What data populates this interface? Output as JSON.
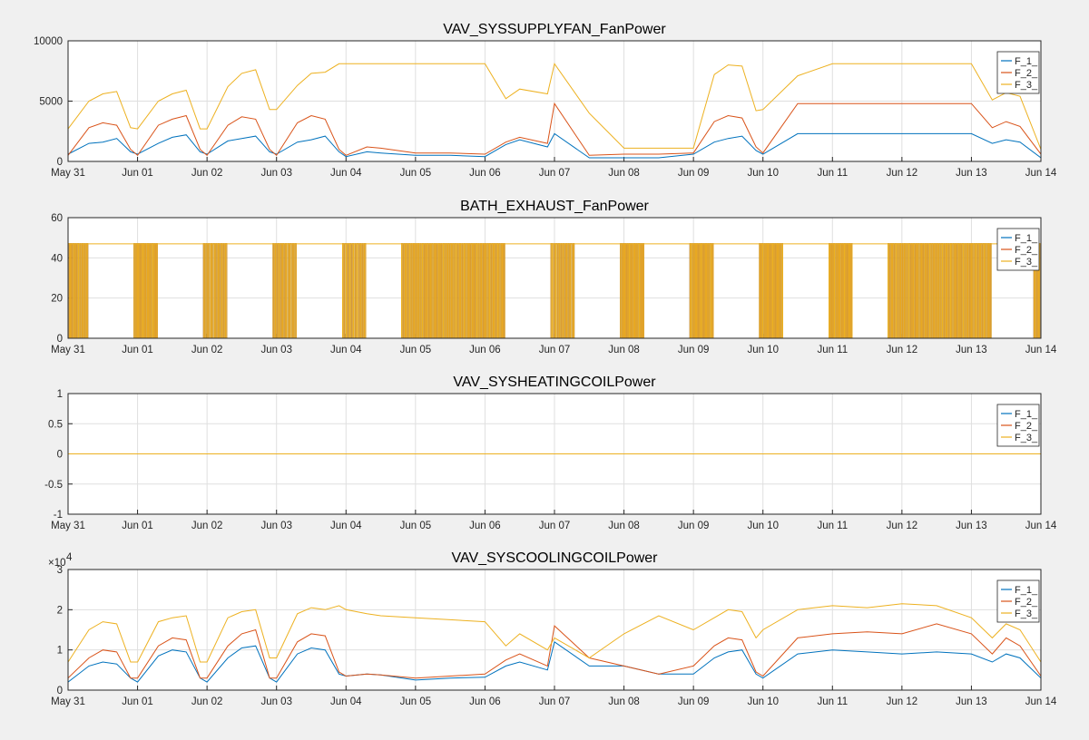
{
  "figure": {
    "background": "#f0f0f0",
    "axes_background": "#ffffff"
  },
  "colors": {
    "F_1_": "#0072bd",
    "F_2_": "#d95319",
    "F_3_": "#edb120"
  },
  "chart_data": [
    {
      "type": "line",
      "title": "VAV_SYSSUPPLYFAN_FanPower",
      "xlabel": "",
      "ylabel": "",
      "x_ticks": [
        "May 31",
        "Jun 01",
        "Jun 02",
        "Jun 03",
        "Jun 04",
        "Jun 05",
        "Jun 06",
        "Jun 07",
        "Jun 08",
        "Jun 09",
        "Jun 10",
        "Jun 11",
        "Jun 12",
        "Jun 13",
        "Jun 14"
      ],
      "ylim": [
        0,
        10000
      ],
      "y_ticks": [
        "0",
        "5000",
        "10000"
      ],
      "y_exponent": "",
      "grid": true,
      "legend": {
        "position": "top-right",
        "entries": [
          "F_1_",
          "F_2_",
          "F_3_"
        ]
      },
      "series": [
        {
          "name": "F_1_",
          "x_day": [
            0,
            0.3,
            0.5,
            0.7,
            0.9,
            1,
            1.3,
            1.5,
            1.7,
            1.9,
            2,
            2.3,
            2.5,
            2.7,
            2.9,
            3,
            3.3,
            3.5,
            3.7,
            3.9,
            4,
            4.3,
            4.5,
            5,
            5.5,
            6,
            6.3,
            6.5,
            6.9,
            7,
            7.5,
            8,
            8.5,
            9,
            9.3,
            9.5,
            9.7,
            9.9,
            10,
            10.5,
            11,
            11.5,
            12,
            12.5,
            13,
            13.3,
            13.5,
            13.7,
            14
          ],
          "values": [
            600,
            1500,
            1600,
            1900,
            800,
            600,
            1500,
            2000,
            2200,
            800,
            600,
            1700,
            1900,
            2100,
            800,
            600,
            1600,
            1800,
            2100,
            800,
            400,
            800,
            700,
            500,
            500,
            400,
            1400,
            1800,
            1200,
            2300,
            300,
            300,
            300,
            600,
            1600,
            1900,
            2100,
            900,
            600,
            2300,
            2300,
            2300,
            2300,
            2300,
            2300,
            1500,
            1800,
            1600,
            300
          ]
        },
        {
          "name": "F_2_",
          "x_day": [
            0,
            0.3,
            0.5,
            0.7,
            0.9,
            1,
            1.3,
            1.5,
            1.7,
            1.9,
            2,
            2.3,
            2.5,
            2.7,
            2.9,
            3,
            3.3,
            3.5,
            3.7,
            3.9,
            4,
            4.3,
            4.5,
            5,
            5.5,
            6,
            6.3,
            6.5,
            6.9,
            7,
            7.5,
            8,
            8.5,
            9,
            9.3,
            9.5,
            9.7,
            9.9,
            10,
            10.5,
            11,
            11.5,
            12,
            12.5,
            13,
            13.3,
            13.5,
            13.7,
            14
          ],
          "values": [
            500,
            2800,
            3200,
            3000,
            1000,
            500,
            3000,
            3500,
            3800,
            1000,
            500,
            3000,
            3700,
            3500,
            1000,
            500,
            3200,
            3800,
            3500,
            1000,
            500,
            1200,
            1100,
            700,
            700,
            600,
            1600,
            2000,
            1500,
            4800,
            500,
            600,
            600,
            700,
            3300,
            3800,
            3600,
            1200,
            700,
            4800,
            4800,
            4800,
            4800,
            4800,
            4800,
            2800,
            3300,
            2900,
            600
          ]
        },
        {
          "name": "F_3_",
          "x_day": [
            0,
            0.3,
            0.5,
            0.7,
            0.9,
            1,
            1.3,
            1.5,
            1.7,
            1.9,
            2,
            2.3,
            2.5,
            2.7,
            2.9,
            3,
            3.3,
            3.5,
            3.7,
            3.9,
            4,
            4.3,
            4.5,
            5,
            5.5,
            6,
            6.3,
            6.5,
            6.9,
            7,
            7.5,
            8,
            8.5,
            9,
            9.3,
            9.5,
            9.7,
            9.9,
            10,
            10.5,
            11,
            11.5,
            12,
            12.5,
            13,
            13.3,
            13.5,
            13.7,
            14
          ],
          "values": [
            2700,
            5000,
            5600,
            5800,
            2800,
            2700,
            5000,
            5600,
            5900,
            2700,
            2700,
            6200,
            7300,
            7600,
            4300,
            4300,
            6300,
            7300,
            7400,
            8100,
            8100,
            8100,
            8100,
            8100,
            8100,
            8100,
            5200,
            6000,
            5600,
            8100,
            4000,
            1100,
            1100,
            1100,
            7200,
            8000,
            7900,
            4200,
            4300,
            7100,
            8100,
            8100,
            8100,
            8100,
            8100,
            5100,
            5700,
            5400,
            1000
          ]
        }
      ]
    },
    {
      "type": "line",
      "title": "BATH_EXHAUST_FanPower",
      "xlabel": "",
      "ylabel": "",
      "x_ticks": [
        "May 31",
        "Jun 01",
        "Jun 02",
        "Jun 03",
        "Jun 04",
        "Jun 05",
        "Jun 06",
        "Jun 07",
        "Jun 08",
        "Jun 09",
        "Jun 10",
        "Jun 11",
        "Jun 12",
        "Jun 13",
        "Jun 14"
      ],
      "ylim": [
        0,
        60
      ],
      "y_ticks": [
        "0",
        "20",
        "40",
        "60"
      ],
      "y_exponent": "",
      "grid": true,
      "legend": {
        "position": "top-right",
        "entries": [
          "F_1_",
          "F_2_",
          "F_3_"
        ]
      },
      "series": [
        {
          "name": "F_1_",
          "x_day": [
            0,
            14
          ],
          "values": [
            0,
            0
          ]
        },
        {
          "name": "F_2_",
          "x_day": [
            0,
            14
          ],
          "values": [
            0,
            0
          ]
        },
        {
          "name": "F_3_",
          "x_day": [
            0,
            14
          ],
          "values": [
            47,
            47
          ]
        }
      ],
      "on_off_level": 47,
      "cycling_periods_day": [
        [
          0,
          0.3
        ],
        [
          0.95,
          1.3
        ],
        [
          1.95,
          2.3
        ],
        [
          2.95,
          3.3
        ],
        [
          3.95,
          4.3
        ],
        [
          4.8,
          6.3
        ],
        [
          6.95,
          7.3
        ],
        [
          7.95,
          8.3
        ],
        [
          8.95,
          9.3
        ],
        [
          9.95,
          10.3
        ],
        [
          10.95,
          11.3
        ],
        [
          11.8,
          13.3
        ],
        [
          13.9,
          14
        ]
      ]
    },
    {
      "type": "line",
      "title": "VAV_SYSHEATINGCOILPower",
      "xlabel": "",
      "ylabel": "",
      "x_ticks": [
        "May 31",
        "Jun 01",
        "Jun 02",
        "Jun 03",
        "Jun 04",
        "Jun 05",
        "Jun 06",
        "Jun 07",
        "Jun 08",
        "Jun 09",
        "Jun 10",
        "Jun 11",
        "Jun 12",
        "Jun 13",
        "Jun 14"
      ],
      "ylim": [
        -1,
        1
      ],
      "y_ticks": [
        "-1",
        "-0.5",
        "0",
        "0.5",
        "1"
      ],
      "y_exponent": "",
      "grid": true,
      "legend": {
        "position": "top-right",
        "entries": [
          "F_1_",
          "F_2_",
          "F_3_"
        ]
      },
      "series": [
        {
          "name": "F_1_",
          "x_day": [
            0,
            14
          ],
          "values": [
            0,
            0
          ]
        },
        {
          "name": "F_2_",
          "x_day": [
            0,
            14
          ],
          "values": [
            0,
            0
          ]
        },
        {
          "name": "F_3_",
          "x_day": [
            0,
            14
          ],
          "values": [
            0,
            0
          ]
        }
      ]
    },
    {
      "type": "line",
      "title": "VAV_SYSCOOLINGCOILPower",
      "xlabel": "",
      "ylabel": "",
      "x_ticks": [
        "May 31",
        "Jun 01",
        "Jun 02",
        "Jun 03",
        "Jun 04",
        "Jun 05",
        "Jun 06",
        "Jun 07",
        "Jun 08",
        "Jun 09",
        "Jun 10",
        "Jun 11",
        "Jun 12",
        "Jun 13",
        "Jun 14"
      ],
      "ylim": [
        0,
        30000
      ],
      "y_ticks": [
        "0",
        "1",
        "2",
        "3"
      ],
      "y_exponent": "10^4",
      "grid": true,
      "legend": {
        "position": "top-right",
        "entries": [
          "F_1_",
          "F_2_",
          "F_3_"
        ]
      },
      "series": [
        {
          "name": "F_1_",
          "x_day": [
            0,
            0.3,
            0.5,
            0.7,
            0.9,
            1,
            1.3,
            1.5,
            1.7,
            1.9,
            2,
            2.3,
            2.5,
            2.7,
            2.9,
            3,
            3.3,
            3.5,
            3.7,
            3.9,
            4,
            4.3,
            4.5,
            5,
            5.5,
            6,
            6.3,
            6.5,
            6.9,
            7,
            7.5,
            8,
            8.5,
            9,
            9.3,
            9.5,
            9.7,
            9.9,
            10,
            10.5,
            11,
            11.5,
            12,
            12.5,
            13,
            13.3,
            13.5,
            13.7,
            14
          ],
          "values": [
            2000,
            6000,
            7000,
            6500,
            3000,
            2000,
            8500,
            10000,
            9500,
            3000,
            2000,
            8000,
            10500,
            11000,
            3000,
            2000,
            9000,
            10500,
            10000,
            4000,
            3500,
            4000,
            3800,
            2500,
            3000,
            3200,
            6000,
            7000,
            5000,
            12000,
            6000,
            6000,
            4000,
            4000,
            8000,
            9500,
            10000,
            4000,
            3000,
            9000,
            10000,
            9500,
            9000,
            9500,
            9000,
            7000,
            9000,
            8000,
            3000
          ]
        },
        {
          "name": "F_2_",
          "x_day": [
            0,
            0.3,
            0.5,
            0.7,
            0.9,
            1,
            1.3,
            1.5,
            1.7,
            1.9,
            2,
            2.3,
            2.5,
            2.7,
            2.9,
            3,
            3.3,
            3.5,
            3.7,
            3.9,
            4,
            4.3,
            4.5,
            5,
            5.5,
            6,
            6.3,
            6.5,
            6.9,
            7,
            7.5,
            8,
            8.5,
            9,
            9.3,
            9.5,
            9.7,
            9.9,
            10,
            10.5,
            11,
            11.5,
            12,
            12.5,
            13,
            13.3,
            13.5,
            13.7,
            14
          ],
          "values": [
            3000,
            8000,
            10000,
            9500,
            3000,
            3000,
            11000,
            13000,
            12500,
            3000,
            3000,
            11000,
            14000,
            15000,
            3000,
            3000,
            12000,
            14000,
            13500,
            4500,
            3500,
            4000,
            3800,
            3000,
            3500,
            4000,
            7500,
            9000,
            6000,
            16000,
            8000,
            6000,
            4000,
            6000,
            11000,
            13000,
            12500,
            4500,
            3500,
            13000,
            14000,
            14500,
            14000,
            16500,
            14000,
            9000,
            13000,
            11000,
            3500
          ]
        },
        {
          "name": "F_3_",
          "x_day": [
            0,
            0.3,
            0.5,
            0.7,
            0.9,
            1,
            1.3,
            1.5,
            1.7,
            1.9,
            2,
            2.3,
            2.5,
            2.7,
            2.9,
            3,
            3.3,
            3.5,
            3.7,
            3.9,
            4,
            4.3,
            4.5,
            5,
            5.5,
            6,
            6.3,
            6.5,
            6.9,
            7,
            7.5,
            8,
            8.5,
            9,
            9.3,
            9.5,
            9.7,
            9.9,
            10,
            10.5,
            11,
            11.5,
            12,
            12.5,
            13,
            13.3,
            13.5,
            13.7,
            14
          ],
          "values": [
            7000,
            15000,
            17000,
            16500,
            7000,
            7000,
            17000,
            18000,
            18500,
            7000,
            7000,
            18000,
            19500,
            20000,
            8000,
            8000,
            19000,
            20500,
            20000,
            21000,
            20000,
            19000,
            18500,
            18000,
            17500,
            17000,
            11000,
            14000,
            10000,
            13000,
            8000,
            14000,
            18500,
            15000,
            18000,
            20000,
            19500,
            13000,
            15000,
            20000,
            21000,
            20500,
            21500,
            21000,
            18000,
            13000,
            16500,
            15000,
            7000
          ]
        }
      ]
    }
  ]
}
